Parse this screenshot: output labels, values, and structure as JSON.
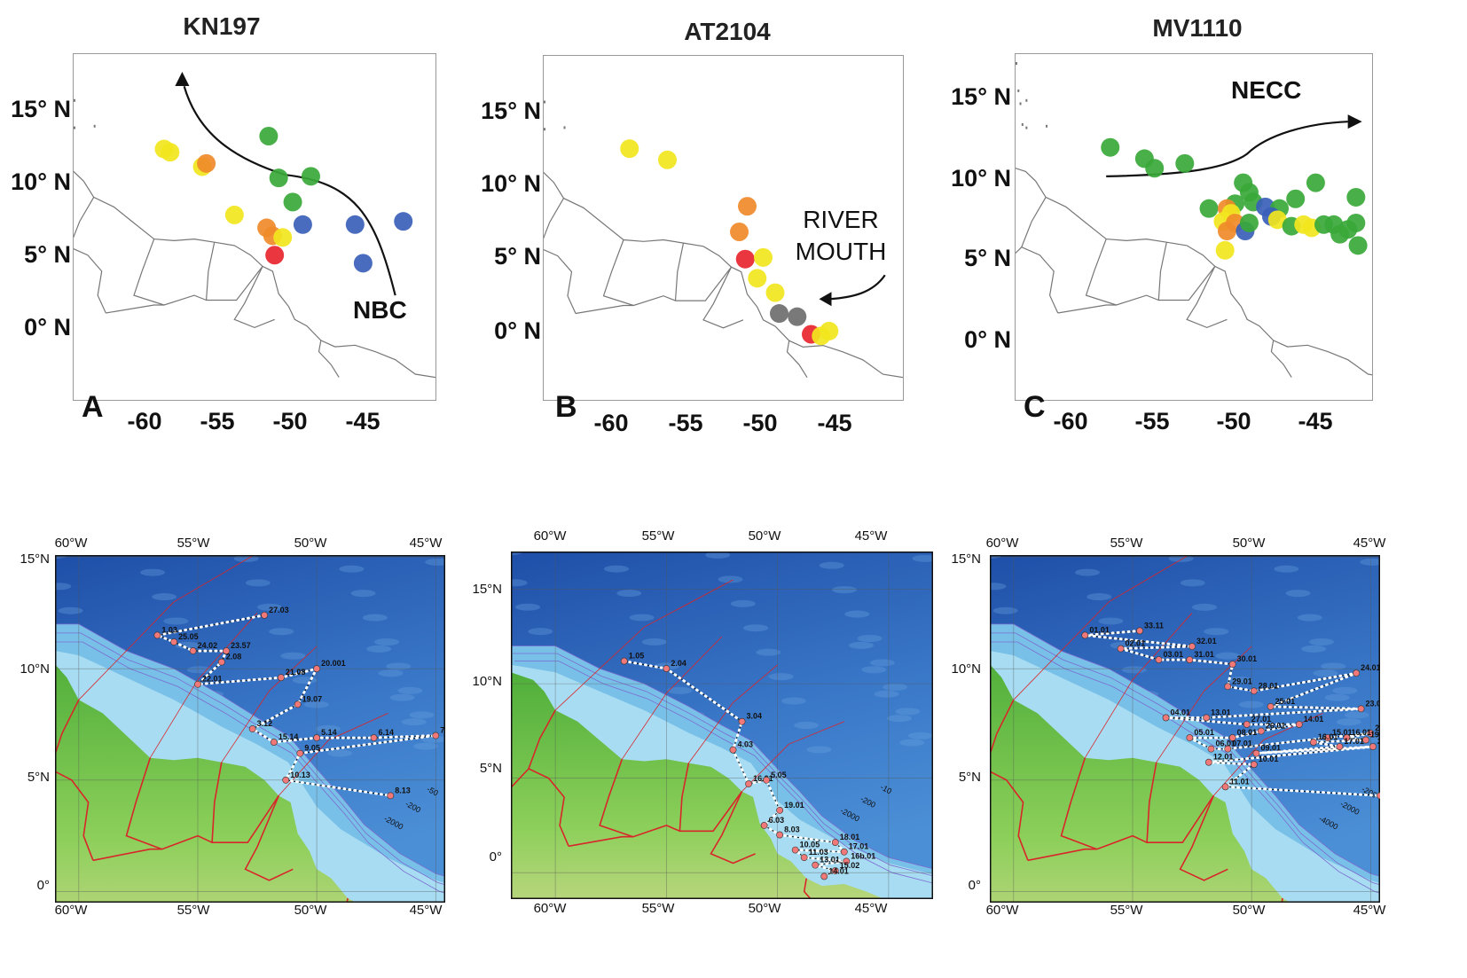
{
  "top_panels": [
    {
      "title": "KN197",
      "panel_label": "A",
      "lat_ticks": [
        "15° N",
        "10° N",
        "5° N",
        "0° N"
      ],
      "lon_ticks": [
        "-60",
        "-55",
        "-50",
        "-45"
      ],
      "annotations": [
        "NBC"
      ],
      "arrow": "NBC flow northwest",
      "samples": [
        {
          "lon": -56.5,
          "lat": 11.6,
          "color": "yellow"
        },
        {
          "lon": -56.2,
          "lat": 11.4,
          "color": "yellow"
        },
        {
          "lon": -54.6,
          "lat": 10.5,
          "color": "yellow"
        },
        {
          "lon": -54.4,
          "lat": 10.7,
          "color": "orange"
        },
        {
          "lon": -51.3,
          "lat": 12.4,
          "color": "green"
        },
        {
          "lon": -50.8,
          "lat": 9.8,
          "color": "green"
        },
        {
          "lon": -49.2,
          "lat": 9.9,
          "color": "green"
        },
        {
          "lon": -50.1,
          "lat": 8.3,
          "color": "green"
        },
        {
          "lon": -53.0,
          "lat": 7.5,
          "color": "yellow"
        },
        {
          "lon": -51.4,
          "lat": 6.7,
          "color": "orange"
        },
        {
          "lon": -51.1,
          "lat": 6.2,
          "color": "orange"
        },
        {
          "lon": -50.6,
          "lat": 6.1,
          "color": "yellow"
        },
        {
          "lon": -49.6,
          "lat": 6.9,
          "color": "blue"
        },
        {
          "lon": -47.0,
          "lat": 6.9,
          "color": "blue"
        },
        {
          "lon": -44.6,
          "lat": 7.1,
          "color": "blue"
        },
        {
          "lon": -46.6,
          "lat": 4.5,
          "color": "blue"
        },
        {
          "lon": -51.0,
          "lat": 5.0,
          "color": "red"
        }
      ]
    },
    {
      "title": "AT2104",
      "panel_label": "B",
      "lat_ticks": [
        "15° N",
        "10° N",
        "5° N",
        "0° N"
      ],
      "lon_ticks": [
        "-60",
        "-55",
        "-50",
        "-45"
      ],
      "annotations": [
        "RIVER",
        "MOUTH"
      ],
      "arrow": "toward river mouth",
      "samples": [
        {
          "lon": -56.7,
          "lat": 11.7,
          "color": "yellow"
        },
        {
          "lon": -54.8,
          "lat": 11.0,
          "color": "yellow"
        },
        {
          "lon": -50.8,
          "lat": 8.1,
          "color": "orange"
        },
        {
          "lon": -51.2,
          "lat": 6.5,
          "color": "orange"
        },
        {
          "lon": -50.9,
          "lat": 4.8,
          "color": "red"
        },
        {
          "lon": -50.0,
          "lat": 4.9,
          "color": "yellow"
        },
        {
          "lon": -50.3,
          "lat": 3.6,
          "color": "yellow"
        },
        {
          "lon": -49.4,
          "lat": 2.7,
          "color": "yellow"
        },
        {
          "lon": -49.2,
          "lat": 1.4,
          "color": "gray"
        },
        {
          "lon": -48.3,
          "lat": 1.2,
          "color": "gray"
        },
        {
          "lon": -47.6,
          "lat": 0.1,
          "color": "red"
        },
        {
          "lon": -47.1,
          "lat": 0.0,
          "color": "yellow"
        },
        {
          "lon": -46.7,
          "lat": 0.3,
          "color": "yellow"
        }
      ]
    },
    {
      "title": "MV1110",
      "panel_label": "C",
      "lat_ticks": [
        "15° N",
        "10° N",
        "5° N",
        "0° N"
      ],
      "lon_ticks": [
        "-60",
        "-55",
        "-50",
        "-45"
      ],
      "annotations": [
        "NECC"
      ],
      "arrow": "NECC flow east",
      "samples": [
        {
          "lon": -56.8,
          "lat": 11.7,
          "color": "green"
        },
        {
          "lon": -55.1,
          "lat": 11.0,
          "color": "green"
        },
        {
          "lon": -54.6,
          "lat": 10.4,
          "color": "green"
        },
        {
          "lon": -53.1,
          "lat": 10.7,
          "color": "green"
        },
        {
          "lon": -51.9,
          "lat": 7.9,
          "color": "green"
        },
        {
          "lon": -50.6,
          "lat": 8.2,
          "color": "green"
        },
        {
          "lon": -50.2,
          "lat": 9.5,
          "color": "green"
        },
        {
          "lon": -49.9,
          "lat": 8.9,
          "color": "green"
        },
        {
          "lon": -49.7,
          "lat": 8.3,
          "color": "green"
        },
        {
          "lon": -49.1,
          "lat": 8.0,
          "color": "blue"
        },
        {
          "lon": -48.4,
          "lat": 7.9,
          "color": "green"
        },
        {
          "lon": -47.6,
          "lat": 8.5,
          "color": "green"
        },
        {
          "lon": -46.6,
          "lat": 9.5,
          "color": "green"
        },
        {
          "lon": -44.6,
          "lat": 8.6,
          "color": "green"
        },
        {
          "lon": -51.0,
          "lat": 7.9,
          "color": "orange"
        },
        {
          "lon": -50.8,
          "lat": 7.6,
          "color": "yellow"
        },
        {
          "lon": -51.2,
          "lat": 7.1,
          "color": "yellow"
        },
        {
          "lon": -50.6,
          "lat": 7.0,
          "color": "orange"
        },
        {
          "lon": -51.0,
          "lat": 6.5,
          "color": "orange"
        },
        {
          "lon": -50.1,
          "lat": 6.5,
          "color": "blue"
        },
        {
          "lon": -49.9,
          "lat": 7.0,
          "color": "green"
        },
        {
          "lon": -48.8,
          "lat": 7.4,
          "color": "blue"
        },
        {
          "lon": -48.5,
          "lat": 7.2,
          "color": "yellow"
        },
        {
          "lon": -47.8,
          "lat": 6.8,
          "color": "green"
        },
        {
          "lon": -47.2,
          "lat": 6.9,
          "color": "yellow"
        },
        {
          "lon": -46.8,
          "lat": 6.7,
          "color": "yellow"
        },
        {
          "lon": -46.2,
          "lat": 6.9,
          "color": "green"
        },
        {
          "lon": -45.7,
          "lat": 6.9,
          "color": "green"
        },
        {
          "lon": -45.0,
          "lat": 6.6,
          "color": "green"
        },
        {
          "lon": -44.6,
          "lat": 7.0,
          "color": "green"
        },
        {
          "lon": -45.4,
          "lat": 6.3,
          "color": "green"
        },
        {
          "lon": -44.5,
          "lat": 5.6,
          "color": "green"
        },
        {
          "lon": -51.1,
          "lat": 5.3,
          "color": "yellow"
        }
      ]
    }
  ],
  "bottom_panels": [
    {
      "lat_ticks": [
        "15°N",
        "10°N",
        "5°N",
        "0°"
      ],
      "lon_ticks": [
        "60°W",
        "55°W",
        "50°W",
        "45°W"
      ],
      "bathy_labels": [
        "-2000",
        "-200",
        "-50",
        "-10"
      ],
      "stations": [
        {
          "label": "27.03",
          "lon": -52.2,
          "lat": 12.4
        },
        {
          "label": "1.03",
          "lon": -56.7,
          "lat": 11.5
        },
        {
          "label": "25.05",
          "lon": -56.0,
          "lat": 11.2
        },
        {
          "label": "24.02",
          "lon": -55.2,
          "lat": 10.8
        },
        {
          "label": "23.57",
          "lon": -53.8,
          "lat": 10.8
        },
        {
          "label": "2.08",
          "lon": -54.0,
          "lat": 10.3
        },
        {
          "label": "22.01",
          "lon": -55.0,
          "lat": 9.3
        },
        {
          "label": "21.08",
          "lon": -51.5,
          "lat": 9.6
        },
        {
          "label": "20.001",
          "lon": -50.0,
          "lat": 10.0
        },
        {
          "label": "19.07",
          "lon": -50.8,
          "lat": 8.4
        },
        {
          "label": "3.12",
          "lon": -52.7,
          "lat": 7.3
        },
        {
          "label": "15.14",
          "lon": -51.8,
          "lat": 6.7
        },
        {
          "label": "5.14",
          "lon": -50.0,
          "lat": 6.9
        },
        {
          "label": "6.14",
          "lon": -47.6,
          "lat": 6.9
        },
        {
          "label": "7.03",
          "lon": -45.0,
          "lat": 7.0
        },
        {
          "label": "9.05",
          "lon": -50.7,
          "lat": 6.2
        },
        {
          "label": "10.13",
          "lon": -51.3,
          "lat": 5.0
        },
        {
          "label": "8.13",
          "lon": -46.9,
          "lat": 4.3
        }
      ]
    },
    {
      "lat_ticks": [
        "15°N",
        "10°N",
        "5°N",
        "0°"
      ],
      "lon_ticks": [
        "60°W",
        "55°W",
        "50°W",
        "45°W"
      ],
      "bathy_labels": [
        "-2000",
        "-200",
        "-10"
      ],
      "stations": [
        {
          "label": "1.05",
          "lon": -56.9,
          "lat": 11.2
        },
        {
          "label": "2.04",
          "lon": -55.0,
          "lat": 10.8
        },
        {
          "label": "3.04",
          "lon": -51.6,
          "lat": 8.0
        },
        {
          "label": "4.03",
          "lon": -52.0,
          "lat": 6.5
        },
        {
          "label": "16.01",
          "lon": -51.3,
          "lat": 4.7
        },
        {
          "label": "5.05",
          "lon": -50.5,
          "lat": 4.9
        },
        {
          "label": "19.01",
          "lon": -49.9,
          "lat": 3.3
        },
        {
          "label": "6.03",
          "lon": -50.6,
          "lat": 2.5
        },
        {
          "label": "8.03",
          "lon": -49.9,
          "lat": 2.0
        },
        {
          "label": "18.01",
          "lon": -47.4,
          "lat": 1.6
        },
        {
          "label": "17.01",
          "lon": -47.0,
          "lat": 1.1
        },
        {
          "label": "10.05",
          "lon": -49.2,
          "lat": 1.2
        },
        {
          "label": "11.03",
          "lon": -48.8,
          "lat": 0.8
        },
        {
          "label": "16b.01",
          "lon": -46.9,
          "lat": 0.6
        },
        {
          "label": "13.01",
          "lon": -48.3,
          "lat": 0.4
        },
        {
          "label": "15.02",
          "lon": -47.4,
          "lat": 0.1
        },
        {
          "label": "14.01",
          "lon": -47.9,
          "lat": -0.2
        }
      ]
    },
    {
      "lat_ticks": [
        "15°N",
        "10°N",
        "5°N",
        "0°"
      ],
      "lon_ticks": [
        "60°W",
        "55°W",
        "50°W",
        "45°W"
      ],
      "bathy_labels": [
        "-4000",
        "-2000",
        "-200",
        "-50",
        "-10"
      ],
      "stations": [
        {
          "label": "33.11",
          "lon": -54.7,
          "lat": 11.7
        },
        {
          "label": "01.01",
          "lon": -57.0,
          "lat": 11.5
        },
        {
          "label": "32.01",
          "lon": -52.5,
          "lat": 11.0
        },
        {
          "label": "02.01",
          "lon": -55.5,
          "lat": 10.9
        },
        {
          "label": "03.01",
          "lon": -53.9,
          "lat": 10.4
        },
        {
          "label": "31.01",
          "lon": -52.6,
          "lat": 10.4
        },
        {
          "label": "30.01",
          "lon": -50.8,
          "lat": 10.2
        },
        {
          "label": "29.01",
          "lon": -51.0,
          "lat": 9.2
        },
        {
          "label": "28.01",
          "lon": -49.9,
          "lat": 9.0
        },
        {
          "label": "24.01",
          "lon": -45.6,
          "lat": 9.8
        },
        {
          "label": "25.01",
          "lon": -49.2,
          "lat": 8.3
        },
        {
          "label": "23.01",
          "lon": -45.4,
          "lat": 8.2
        },
        {
          "label": "13.01",
          "lon": -51.9,
          "lat": 7.8
        },
        {
          "label": "04.01",
          "lon": -53.6,
          "lat": 7.8
        },
        {
          "label": "27.01",
          "lon": -50.2,
          "lat": 7.5
        },
        {
          "label": "14.01",
          "lon": -48.0,
          "lat": 7.5
        },
        {
          "label": "26.01",
          "lon": -49.6,
          "lat": 7.2
        },
        {
          "label": "08.01",
          "lon": -50.8,
          "lat": 6.9
        },
        {
          "label": "05.01",
          "lon": -52.6,
          "lat": 6.9
        },
        {
          "label": "06.01",
          "lon": -51.7,
          "lat": 6.4
        },
        {
          "label": "07.01",
          "lon": -51.0,
          "lat": 6.4
        },
        {
          "label": "15.01",
          "lon": -46.8,
          "lat": 6.9
        },
        {
          "label": "22.01",
          "lon": -45.0,
          "lat": 7.1
        },
        {
          "label": "16.01",
          "lon": -46.0,
          "lat": 6.9
        },
        {
          "label": "19.01",
          "lon": -45.2,
          "lat": 6.8
        },
        {
          "label": "16.01",
          "lon": -47.4,
          "lat": 6.7
        },
        {
          "label": "17.01",
          "lon": -46.3,
          "lat": 6.5
        },
        {
          "label": "09.01",
          "lon": -49.8,
          "lat": 6.2
        },
        {
          "label": "20.01",
          "lon": -44.9,
          "lat": 6.5
        },
        {
          "label": "12.01",
          "lon": -51.8,
          "lat": 5.8
        },
        {
          "label": "10.01",
          "lon": -49.9,
          "lat": 5.7
        },
        {
          "label": "11.01",
          "lon": -51.1,
          "lat": 4.7
        },
        {
          "label": "21.01",
          "lon": -44.6,
          "lat": 4.3
        }
      ]
    }
  ],
  "colors": {
    "green": "#3aa83a",
    "yellow": "#f2e61e",
    "orange": "#f08a2a",
    "red": "#e8262f",
    "blue": "#3a5fb8",
    "gray": "#6e6e6e",
    "ocean_deep": "#2a5fb0",
    "ocean_shelf": "#7cc3e6",
    "land": "#6fbf4a",
    "border_red": "#d8262a",
    "station": "#f07878"
  }
}
